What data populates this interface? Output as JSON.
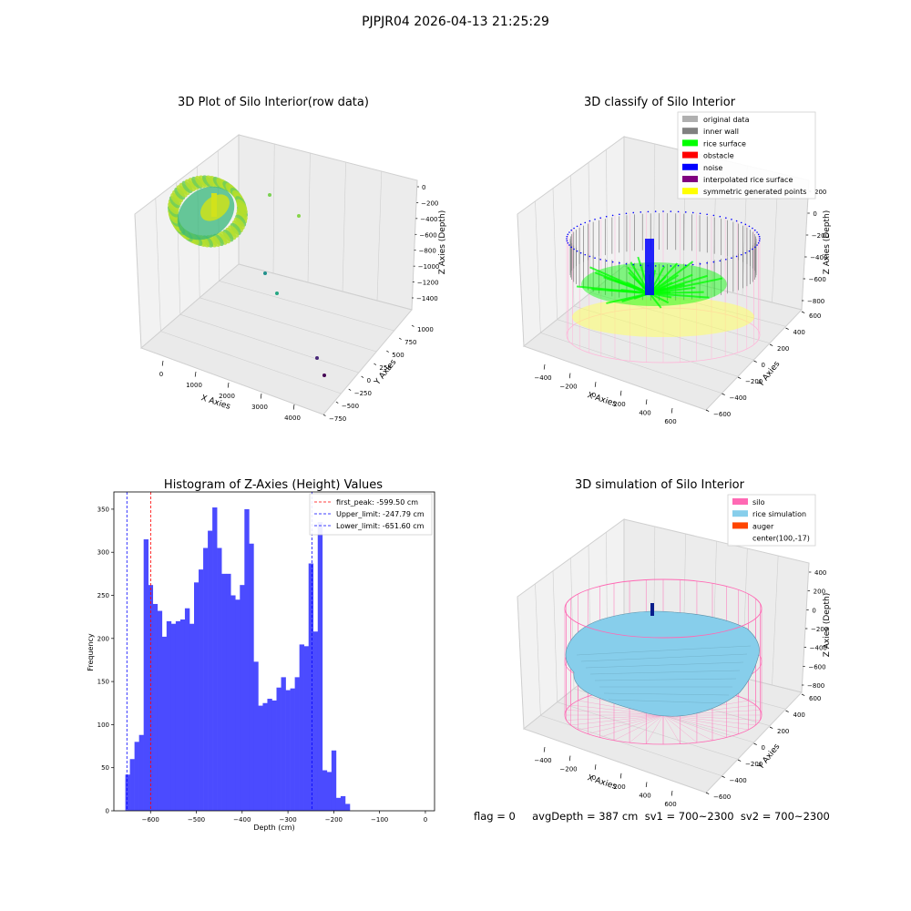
{
  "figure": {
    "title": "PJPJR04 2026-04-13 21:25:29",
    "footer": "flag = 0     avgDepth = 387 cm  sv1 = 700~2300  sv2 = 700~2300"
  },
  "colors": {
    "hist_bar": "#4b4bff",
    "first_peak": "#ff0000",
    "limit": "#0000ff",
    "grid": "#cfcfcf",
    "pane": "#f2f2f2"
  },
  "chart_data": [
    {
      "id": "raw",
      "type": "scatter",
      "title": "3D Plot of Silo Interior(row data)",
      "xlabel": "X Axies",
      "ylabel": "Y Axies",
      "zlabel": "Z Axies (Depth)",
      "xticks": [
        "0",
        "1000",
        "2000",
        "3000",
        "4000"
      ],
      "yticks": [
        "−750",
        "−500",
        "−250",
        "0",
        "250",
        "500",
        "750",
        "1000"
      ],
      "zticks": [
        "0",
        "−200",
        "−400",
        "−600",
        "−800",
        "−1000",
        "−1200",
        "−1400"
      ],
      "grid": true,
      "colormap": "viridis",
      "outlier_points": [
        {
          "x": 3900,
          "y": -600,
          "z": -1350
        },
        {
          "x": 4000,
          "y": -700,
          "z": -1450
        },
        {
          "x": 1300,
          "y": 50,
          "z": -1050
        },
        {
          "x": 1700,
          "y": 200,
          "z": -1050
        },
        {
          "x": 1900,
          "y": 500,
          "z": -300
        },
        {
          "x": 3000,
          "y": 700,
          "z": -300
        }
      ]
    },
    {
      "id": "classify",
      "type": "scatter",
      "title": "3D classify of Silo Interior",
      "xlabel": "X Axies",
      "ylabel": "Y Axies",
      "zlabel": "Z Axies (Depth)",
      "xticks": [
        "−400",
        "−200",
        "0",
        "200",
        "400",
        "600"
      ],
      "yticks": [
        "−600",
        "−400",
        "−200",
        "0",
        "200",
        "400",
        "600"
      ],
      "zticks": [
        "200",
        "0",
        "−200",
        "−400",
        "−600",
        "−800"
      ],
      "grid": true,
      "legend": [
        {
          "label": "original data",
          "color": "#b0b0b0"
        },
        {
          "label": "inner wall",
          "color": "#808080"
        },
        {
          "label": "rice surface",
          "color": "#00ff00"
        },
        {
          "label": "obstacle",
          "color": "#ff0000"
        },
        {
          "label": "noise",
          "color": "#0000ff"
        },
        {
          "label": "interpolated rice surface",
          "color": "#800080"
        },
        {
          "label": "symmetric generated points",
          "color": "#ffff00"
        }
      ],
      "legend_position": "top-right"
    },
    {
      "id": "hist",
      "type": "bar",
      "title": "Histogram of Z-Axies (Height) Values",
      "xlabel": "Depth (cm)",
      "ylabel": "Frequency",
      "xlim": [
        -680,
        20
      ],
      "ylim": [
        0,
        370
      ],
      "xticks": [
        "−600",
        "−500",
        "−400",
        "−300",
        "−200",
        "−100",
        "0"
      ],
      "yticks": [
        "0",
        "50",
        "100",
        "150",
        "200",
        "250",
        "300",
        "350"
      ],
      "bin_width": 10,
      "bins_start": [
        -655,
        -645,
        -635,
        -625,
        -615,
        -605,
        -595,
        -585,
        -575,
        -565,
        -555,
        -545,
        -535,
        -525,
        -515,
        -505,
        -495,
        -485,
        -475,
        -465,
        -455,
        -445,
        -435,
        -425,
        -415,
        -405,
        -395,
        -385,
        -375,
        -365,
        -355,
        -345,
        -335,
        -325,
        -315,
        -305,
        -295,
        -285,
        -275,
        -265,
        -255,
        -245,
        -235,
        -225,
        -215,
        -205,
        -195,
        -185,
        -175,
        -165,
        -155,
        -145,
        -135,
        -125,
        -115,
        -105,
        -95,
        -85,
        -75,
        -65,
        -55,
        -45,
        -35,
        -25,
        -15,
        -5
      ],
      "values": [
        42,
        60,
        80,
        88,
        315,
        262,
        240,
        232,
        202,
        220,
        217,
        220,
        222,
        235,
        217,
        265,
        280,
        305,
        325,
        352,
        305,
        275,
        275,
        250,
        245,
        262,
        350,
        310,
        173,
        122,
        125,
        130,
        128,
        143,
        155,
        140,
        142,
        155,
        193,
        191,
        287,
        208,
        335,
        47,
        45,
        70,
        15,
        17,
        8,
        0,
        0,
        0,
        0,
        0,
        0,
        0,
        0,
        0,
        0,
        0,
        0,
        0,
        0,
        0,
        0,
        0
      ],
      "legend": [
        {
          "label": "first_peak: -599.50 cm",
          "color": "#ff0000",
          "x": -599.5
        },
        {
          "label": "Upper_limit: -247.79 cm",
          "color": "#0000ff",
          "x": -247.79
        },
        {
          "label": "Lower_limit: -651.60 cm",
          "color": "#0000ff",
          "x": -651.6
        }
      ],
      "legend_position": "top-right"
    },
    {
      "id": "sim",
      "type": "surface",
      "title": "3D simulation of Silo Interior",
      "xlabel": "X Axies",
      "ylabel": "Y Axies",
      "zlabel": "Z Axies (Depth)",
      "xticks": [
        "−400",
        "−200",
        "0",
        "200",
        "400",
        "600"
      ],
      "yticks": [
        "−600",
        "−400",
        "−200",
        "0",
        "200",
        "400",
        "600"
      ],
      "zticks": [
        "400",
        "200",
        "0",
        "−200",
        "−400",
        "−600",
        "−800"
      ],
      "grid": true,
      "legend": [
        {
          "label": "silo",
          "color": "#ff69b4"
        },
        {
          "label": "rice simulation",
          "color": "#87ceeb"
        },
        {
          "label": "auger",
          "color": "#ff4500"
        },
        {
          "label": "center(100,-17)",
          "color": ""
        }
      ],
      "legend_position": "top-right"
    }
  ]
}
